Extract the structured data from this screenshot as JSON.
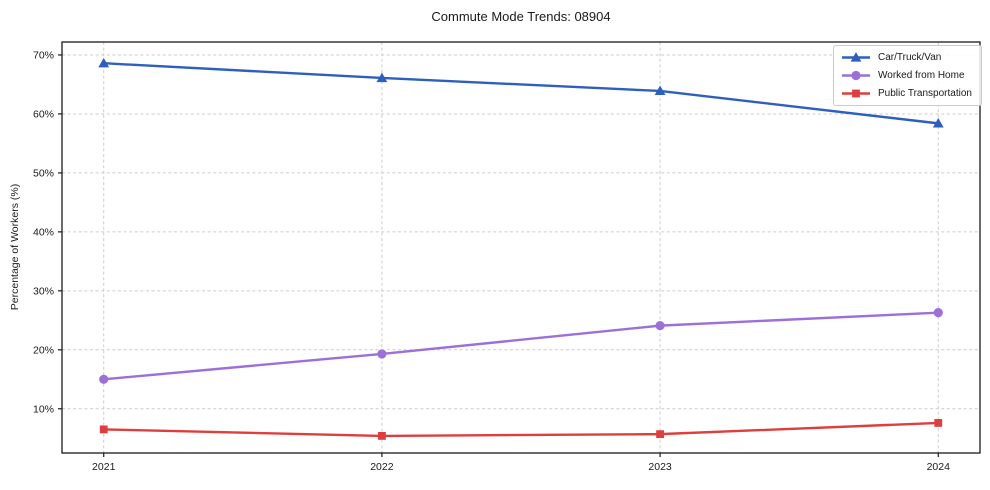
{
  "chart_data": {
    "type": "line",
    "title": "Commute Mode Trends: 08904",
    "xlabel": "",
    "ylabel": "Percentage of Workers (%)",
    "x": [
      2021,
      2022,
      2023,
      2024
    ],
    "x_tick_labels": [
      "2021",
      "2022",
      "2023",
      "2024"
    ],
    "yticks": [
      10,
      20,
      30,
      40,
      50,
      60,
      70
    ],
    "ytick_labels": [
      "10%",
      "20%",
      "30%",
      "40%",
      "50%",
      "60%",
      "70%"
    ],
    "ylim": [
      2.5,
      72.2
    ],
    "xlim": [
      2020.85,
      2024.15
    ],
    "grid": true,
    "legend_position": "upper right",
    "series": [
      {
        "name": "Car/Truck/Van",
        "color": "#2e5fbf",
        "marker": "triangle",
        "values": [
          68.6,
          66.1,
          63.9,
          58.4
        ]
      },
      {
        "name": "Worked from Home",
        "color": "#9d6fd8",
        "marker": "circle",
        "values": [
          15.0,
          19.3,
          24.1,
          26.3
        ]
      },
      {
        "name": "Public Transportation",
        "color": "#de3e3e",
        "marker": "square",
        "values": [
          6.5,
          5.4,
          5.7,
          7.6
        ]
      }
    ]
  },
  "styles": {
    "background": "#ffffff",
    "grid_color": "#cccccc",
    "spine_color": "#1a1a1a",
    "text_color": "#1a1a1a",
    "legend_border_color": "#cccccc"
  }
}
